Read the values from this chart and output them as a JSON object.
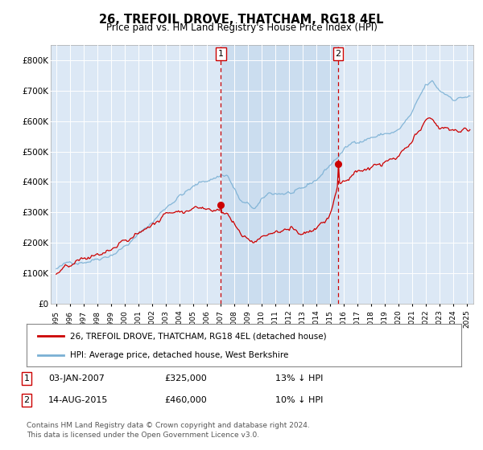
{
  "title": "26, TREFOIL DROVE, THATCHAM, RG18 4EL",
  "subtitle": "Price paid vs. HM Land Registry's House Price Index (HPI)",
  "ylim": [
    0,
    850000
  ],
  "yticks": [
    0,
    100000,
    200000,
    300000,
    400000,
    500000,
    600000,
    700000,
    800000
  ],
  "ytick_labels": [
    "£0",
    "£100K",
    "£200K",
    "£300K",
    "£400K",
    "£500K",
    "£600K",
    "£700K",
    "£800K"
  ],
  "plot_bg": "#dce8f5",
  "shade_color": "#ccddf0",
  "red_line_color": "#cc0000",
  "blue_line_color": "#7ab0d4",
  "vline_color": "#cc0000",
  "marker1_x": 2007.04,
  "marker1_y": 325000,
  "marker2_x": 2015.62,
  "marker2_y": 460000,
  "xmin": 1995.0,
  "xmax": 2025.2,
  "legend_label_red": "26, TREFOIL DROVE, THATCHAM, RG18 4EL (detached house)",
  "legend_label_blue": "HPI: Average price, detached house, West Berkshire",
  "note1_date": "03-JAN-2007",
  "note1_price": "£325,000",
  "note1_hpi": "13% ↓ HPI",
  "note2_date": "14-AUG-2015",
  "note2_price": "£460,000",
  "note2_hpi": "10% ↓ HPI",
  "footer": "Contains HM Land Registry data © Crown copyright and database right 2024.\nThis data is licensed under the Open Government Licence v3.0."
}
